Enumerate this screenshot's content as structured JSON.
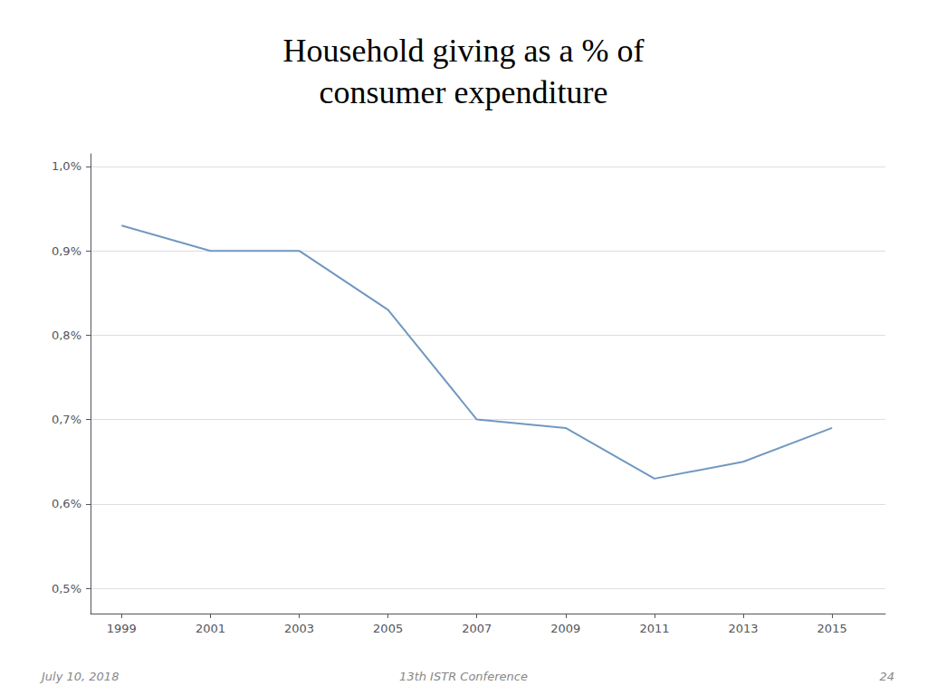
{
  "chart_data": {
    "type": "line",
    "title": "Household giving as a % of\nconsumer expenditure",
    "x": [
      1999,
      2001,
      2003,
      2005,
      2007,
      2009,
      2011,
      2013,
      2015
    ],
    "values": [
      0.0093,
      0.009,
      0.009,
      0.0083,
      0.007,
      0.0069,
      0.0063,
      0.0065,
      0.0069
    ],
    "color": "#7098c0",
    "xlim": [
      1998.3,
      2016.2
    ],
    "xticks": [
      1999,
      2001,
      2003,
      2005,
      2007,
      2009,
      2011,
      2013,
      2015
    ],
    "ylim": [
      0.0047,
      0.01015
    ],
    "yticks": [
      {
        "value": 0.005,
        "label": "0,5%"
      },
      {
        "value": 0.006,
        "label": "0,6%"
      },
      {
        "value": 0.007,
        "label": "0,7%"
      },
      {
        "value": 0.008,
        "label": "0,8%"
      },
      {
        "value": 0.009,
        "label": "0,9%"
      },
      {
        "value": 0.01,
        "label": "1,0%"
      }
    ],
    "grid": true,
    "annotations": [
      "July 10, 2018",
      "13th ISTR Conference",
      "24"
    ]
  }
}
